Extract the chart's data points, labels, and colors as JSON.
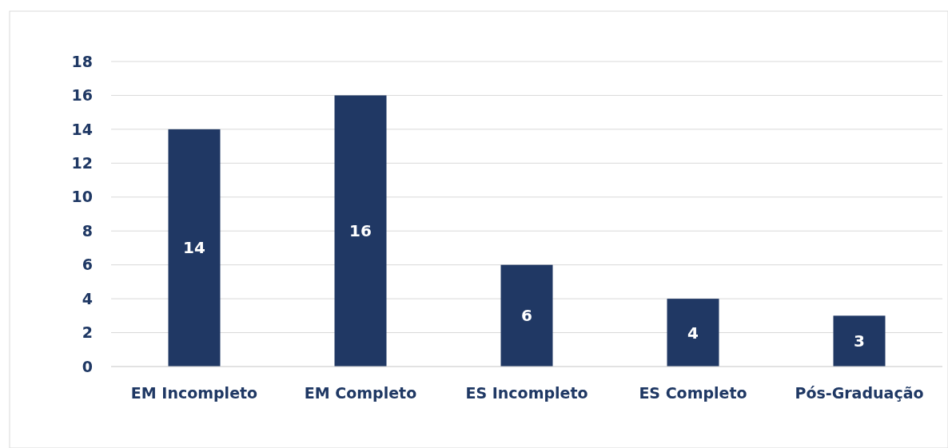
{
  "chart_data": {
    "type": "bar",
    "categories": [
      "EM Incompleto",
      "EM Completo",
      "ES Incompleto",
      "ES Completo",
      "Pós-Graduação"
    ],
    "values": [
      14,
      16,
      6,
      4,
      3
    ],
    "color": "#203864",
    "ylim": [
      0,
      18
    ],
    "yticks": [
      0,
      2,
      4,
      6,
      8,
      10,
      12,
      14,
      16,
      18
    ],
    "grid": "y",
    "data_labels": true
  }
}
